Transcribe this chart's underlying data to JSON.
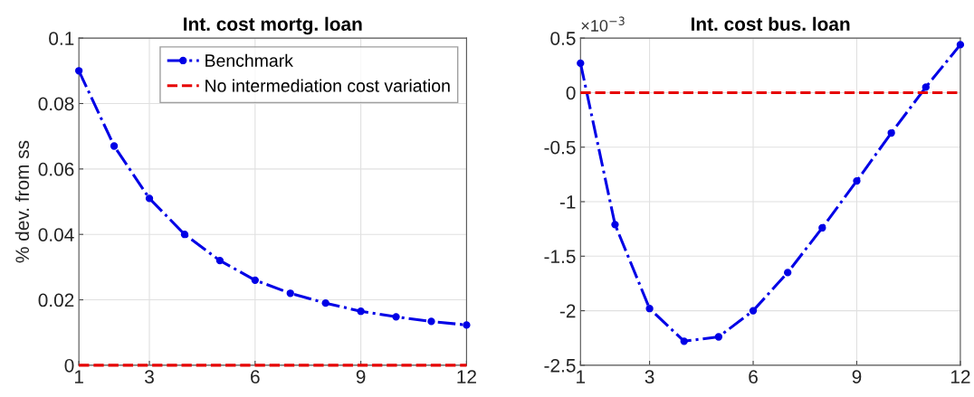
{
  "chart_data": [
    {
      "type": "line",
      "title": "Int. cost mortg. loan",
      "ylabel": "% dev. from ss",
      "x": [
        1,
        2,
        3,
        4,
        5,
        6,
        7,
        8,
        9,
        10,
        11,
        12
      ],
      "series": [
        {
          "name": "Benchmark",
          "color": "#0000e6",
          "marker": "circle",
          "line_style": "dashed",
          "values": [
            0.09,
            0.067,
            0.051,
            0.04,
            0.032,
            0.026,
            0.022,
            0.019,
            0.0165,
            0.0148,
            0.0134,
            0.0123
          ]
        },
        {
          "name": "No intermediation cost variation",
          "color": "#e60000",
          "marker": "none",
          "line_style": "dashed",
          "values": [
            0,
            0,
            0,
            0,
            0,
            0,
            0,
            0,
            0,
            0,
            0,
            0
          ]
        }
      ],
      "xlim": [
        1,
        12
      ],
      "xticks": [
        1,
        3,
        6,
        9,
        12
      ],
      "ylim": [
        0,
        0.1
      ],
      "yticks": [
        0,
        0.02,
        0.04,
        0.06,
        0.08,
        0.1
      ],
      "grid": true,
      "legend": "top right"
    },
    {
      "type": "line",
      "title": "Int. cost bus. loan",
      "annotations": [
        "×10$^{−3}$"
      ],
      "x": [
        1,
        2,
        3,
        4,
        5,
        6,
        7,
        8,
        9,
        10,
        11,
        12
      ],
      "series": [
        {
          "color": "#0000e6",
          "marker": "circle",
          "line_style": "dashed",
          "values": [
            0.27,
            -1.21,
            -1.98,
            -2.28,
            -2.24,
            -2.0,
            -1.65,
            -1.24,
            -0.81,
            -0.37,
            0.05,
            0.44
          ]
        },
        {
          "color": "#e60000",
          "marker": "none",
          "line_style": "dashed",
          "values": [
            0,
            0,
            0,
            0,
            0,
            0,
            0,
            0,
            0,
            0,
            0,
            0
          ]
        }
      ],
      "xlim": [
        1,
        12
      ],
      "xticks": [
        1,
        3,
        6,
        9,
        12
      ],
      "ylim": [
        -2.5,
        0.5
      ],
      "yticks": [
        -2.5,
        -2,
        -1.5,
        -1,
        -0.5,
        0,
        0.5
      ],
      "grid": true
    }
  ]
}
